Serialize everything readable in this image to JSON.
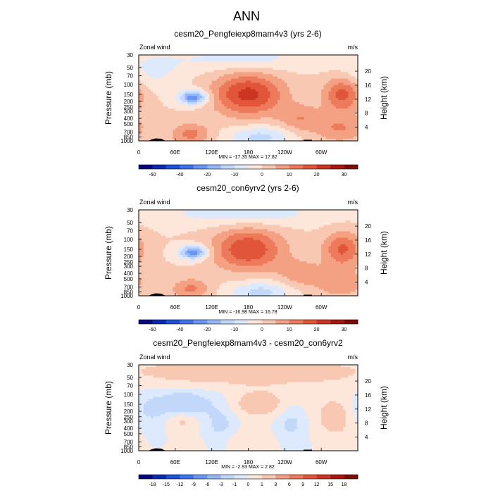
{
  "title": "ANN",
  "chart_data": [
    {
      "type": "heatmap",
      "title": "cesm20_Pengfeiexp8mam4v3 (yrs 2-6)",
      "left_label": "Zonal wind",
      "right_label": "m/s",
      "ylabel": "Pressure (mb)",
      "ylabel_right": "Height (km)",
      "x_ticks": [
        "0",
        "60E",
        "120E",
        "180",
        "120W",
        "60W"
      ],
      "y_ticks": [
        "30",
        "50",
        "70",
        "100",
        "150",
        "200",
        "250",
        "300",
        "400",
        "500",
        "700",
        "850",
        "1000"
      ],
      "height_ticks": [
        "20",
        "16",
        "12",
        "8",
        "4"
      ],
      "min_max_text": "MIN = -17.35  MAX = 17.82",
      "min": -17.35,
      "max": 17.82,
      "colorbar_labels": [
        "-60",
        "-40",
        "-20",
        "-10",
        "0",
        "10",
        "20",
        "30"
      ],
      "colorbar_colors": [
        "#08087e",
        "#0a2ab0",
        "#1e50d8",
        "#3f73ee",
        "#6a96f4",
        "#96b8f8",
        "#c2d8fb",
        "#dde9fc",
        "#fde6da",
        "#f9c8b2",
        "#f4a183",
        "#ec7a5b",
        "#e1563b",
        "#cc3522",
        "#a8180f",
        "#7d0b08"
      ],
      "colorbar_boundaries": [
        -70,
        -60,
        -50,
        -40,
        -30,
        -20,
        -15,
        -10,
        -5,
        0,
        5,
        10,
        15,
        20,
        25,
        30,
        35
      ],
      "levels": [
        -20,
        -15,
        -10,
        -5,
        0,
        5,
        10,
        15,
        20
      ],
      "features": [
        {
          "lon": 180,
          "lev": 150,
          "amp": 22,
          "sx": 40,
          "sy": 0.6
        },
        {
          "lon": 90,
          "lev": 170,
          "amp": -25,
          "sx": 16,
          "sy": 0.2
        },
        {
          "lon": 335,
          "lev": 150,
          "amp": 17,
          "sx": 22,
          "sy": 0.5
        },
        {
          "lon": 330,
          "lev": 600,
          "amp": 10,
          "sx": 30,
          "sy": 0.4
        },
        {
          "lon": 200,
          "lev": 850,
          "amp": -12,
          "sx": 35,
          "sy": 0.3
        },
        {
          "lon": 170,
          "lev": 35,
          "amp": -7,
          "sx": 90,
          "sy": 0.35
        },
        {
          "lon": 85,
          "lev": 750,
          "amp": 12,
          "sx": 22,
          "sy": 0.3
        },
        {
          "lon": 265,
          "lev": 400,
          "amp": 9,
          "sx": 25,
          "sy": 0.4
        },
        {
          "lon": 20,
          "lev": 60,
          "amp": -6,
          "sx": 35,
          "sy": 0.5
        }
      ]
    },
    {
      "type": "heatmap",
      "title": "cesm20_con6yrv2 (yrs 2-6)",
      "left_label": "Zonal wind",
      "right_label": "m/s",
      "ylabel": "Pressure (mb)",
      "ylabel_right": "Height (km)",
      "x_ticks": [
        "0",
        "60E",
        "120E",
        "180",
        "120W",
        "60W"
      ],
      "y_ticks": [
        "30",
        "50",
        "70",
        "100",
        "150",
        "200",
        "250",
        "300",
        "400",
        "500",
        "700",
        "850",
        "1000"
      ],
      "height_ticks": [
        "20",
        "16",
        "12",
        "8",
        "4"
      ],
      "min_max_text": "MIN = -16.98  MAX = 16.78",
      "min": -16.98,
      "max": 16.78,
      "colorbar_labels": [
        "-60",
        "-40",
        "-20",
        "-10",
        "0",
        "10",
        "20",
        "30"
      ],
      "colorbar_colors": [
        "#08087e",
        "#0a2ab0",
        "#1e50d8",
        "#3f73ee",
        "#6a96f4",
        "#96b8f8",
        "#c2d8fb",
        "#dde9fc",
        "#fde6da",
        "#f9c8b2",
        "#f4a183",
        "#ec7a5b",
        "#e1563b",
        "#cc3522",
        "#a8180f",
        "#7d0b08"
      ],
      "colorbar_boundaries": [
        -70,
        -60,
        -50,
        -40,
        -30,
        -20,
        -15,
        -10,
        -5,
        0,
        5,
        10,
        15,
        20,
        25,
        30,
        35
      ],
      "levels": [
        -20,
        -15,
        -10,
        -5,
        0,
        5,
        10,
        15,
        20
      ],
      "features": [
        {
          "lon": 180,
          "lev": 150,
          "amp": 20,
          "sx": 40,
          "sy": 0.6
        },
        {
          "lon": 90,
          "lev": 170,
          "amp": -24,
          "sx": 16,
          "sy": 0.2
        },
        {
          "lon": 335,
          "lev": 150,
          "amp": 16,
          "sx": 22,
          "sy": 0.5
        },
        {
          "lon": 330,
          "lev": 600,
          "amp": 9,
          "sx": 30,
          "sy": 0.4
        },
        {
          "lon": 200,
          "lev": 850,
          "amp": -12,
          "sx": 35,
          "sy": 0.3
        },
        {
          "lon": 170,
          "lev": 35,
          "amp": -8,
          "sx": 100,
          "sy": 0.35
        },
        {
          "lon": 85,
          "lev": 750,
          "amp": 11,
          "sx": 22,
          "sy": 0.3
        },
        {
          "lon": 265,
          "lev": 400,
          "amp": 8,
          "sx": 25,
          "sy": 0.4
        }
      ]
    },
    {
      "type": "heatmap",
      "title": "cesm20_Pengfeiexp8mam4v3 - cesm20_con6yrv2",
      "left_label": "Zonal wind",
      "right_label": "m/s",
      "ylabel": "Pressure (mb)",
      "ylabel_right": "Height (km)",
      "x_ticks": [
        "0",
        "60E",
        "120E",
        "180",
        "120W",
        "60W"
      ],
      "y_ticks": [
        "30",
        "50",
        "70",
        "100",
        "150",
        "200",
        "250",
        "300",
        "400",
        "500",
        "700",
        "850",
        "1000"
      ],
      "height_ticks": [
        "20",
        "16",
        "12",
        "8",
        "4"
      ],
      "min_max_text": "MIN = -2.93  MAX = 2.82",
      "min": -2.93,
      "max": 2.82,
      "colorbar_labels": [
        "-18",
        "-15",
        "-12",
        "-9",
        "-6",
        "-3",
        "-1",
        "0",
        "1",
        "3",
        "6",
        "9",
        "12",
        "15",
        "18"
      ],
      "colorbar_colors": [
        "#08087e",
        "#0a2ab0",
        "#1e50d8",
        "#3f73ee",
        "#6a96f4",
        "#96b8f8",
        "#c2d8fb",
        "#dde9fc",
        "#fde6da",
        "#f9c8b2",
        "#f4a183",
        "#ec7a5b",
        "#e1563b",
        "#cc3522",
        "#a8180f",
        "#7d0b08"
      ],
      "colorbar_boundaries": [
        -21,
        -18,
        -15,
        -12,
        -9,
        -6,
        -3,
        -1,
        0,
        1,
        3,
        6,
        9,
        12,
        15,
        18,
        21
      ],
      "levels": [
        -6,
        -3,
        -1,
        0,
        1,
        3,
        6
      ],
      "features": [
        {
          "lon": 180,
          "lev": 40,
          "amp": 2.0,
          "sx": 150,
          "sy": 0.4
        },
        {
          "lon": 75,
          "lev": 150,
          "amp": -2.6,
          "sx": 28,
          "sy": 0.35
        },
        {
          "lon": 135,
          "lev": 400,
          "amp": -1.6,
          "sx": 20,
          "sy": 0.8
        },
        {
          "lon": 200,
          "lev": 150,
          "amp": 1.8,
          "sx": 40,
          "sy": 0.4
        },
        {
          "lon": 325,
          "lev": 250,
          "amp": 1.8,
          "sx": 25,
          "sy": 0.6
        },
        {
          "lon": 250,
          "lev": 300,
          "amp": -1.4,
          "sx": 18,
          "sy": 0.6
        },
        {
          "lon": 15,
          "lev": 200,
          "amp": -1.3,
          "sx": 25,
          "sy": 0.5
        },
        {
          "lon": 70,
          "lev": 280,
          "amp": 1.5,
          "sx": 20,
          "sy": 0.3
        },
        {
          "lon": 160,
          "lev": 700,
          "amp": 1.2,
          "sx": 40,
          "sy": 0.4
        }
      ]
    }
  ]
}
